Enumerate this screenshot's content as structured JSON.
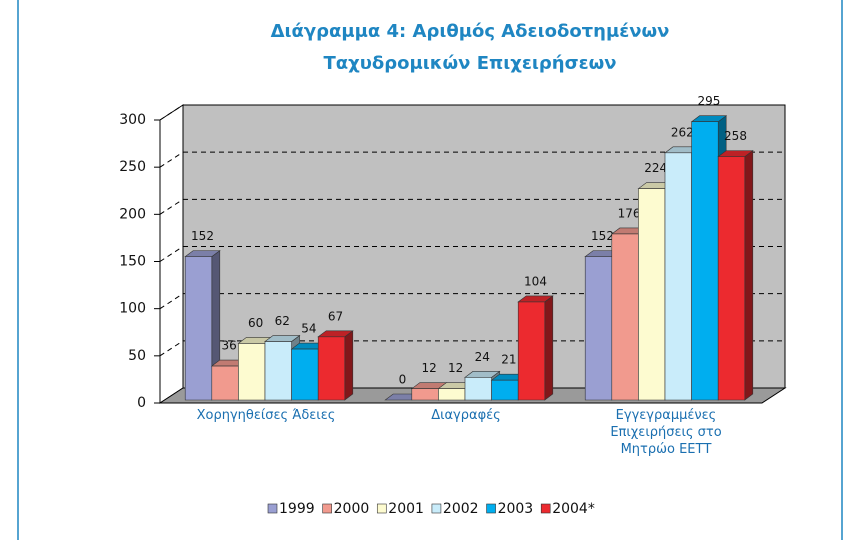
{
  "chart_data": {
    "type": "bar3d",
    "title": "Διάγραμμα 4: Αριθμός Αδειοδοτημένων Ταχυδρομικών Επιχειρήσεων",
    "categories": [
      "Χορηγηθείσες Άδειες",
      "Διαγραφές",
      "Εγγεγραμμένες Επιχειρήσεις στο Μητρώο ΕΕΤΤ"
    ],
    "series": [
      {
        "name": "1999",
        "color": "#9a9fd2",
        "values": [
          152,
          0,
          152
        ]
      },
      {
        "name": "2000",
        "color": "#f19a8e",
        "values": [
          36,
          12,
          176
        ]
      },
      {
        "name": "2001",
        "color": "#fdfbd0",
        "values": [
          60,
          12,
          224
        ]
      },
      {
        "name": "2002",
        "color": "#c9ecfa",
        "values": [
          62,
          24,
          262
        ]
      },
      {
        "name": "2003",
        "color": "#00aeef",
        "values": [
          54,
          21,
          295
        ]
      },
      {
        "name": "2004*",
        "color": "#ec2a2f",
        "values": [
          67,
          104,
          258
        ]
      }
    ],
    "ylim": [
      0,
      300
    ],
    "yticks": [
      0,
      50,
      100,
      150,
      200,
      250,
      300
    ],
    "grid": true,
    "legend": "bottom"
  }
}
